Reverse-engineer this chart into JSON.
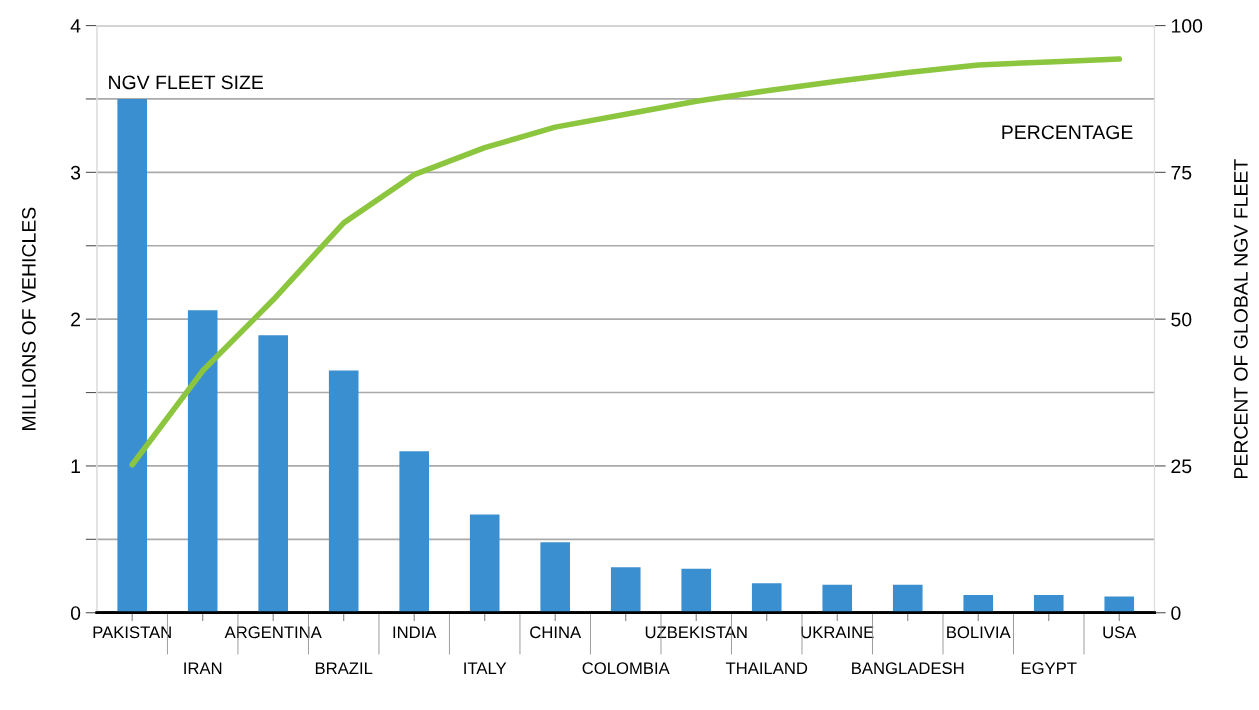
{
  "chart_data": {
    "type": "bar",
    "categories": [
      "PAKISTAN",
      "IRAN",
      "ARGENTINA",
      "BRAZIL",
      "INDIA",
      "ITALY",
      "CHINA",
      "COLOMBIA",
      "UZBEKISTAN",
      "THAILAND",
      "UKRAINE",
      "BANGLADESH",
      "BOLIVIA",
      "EGYPT",
      "USA"
    ],
    "series": [
      {
        "color": "#3a8fd0",
        "values": [
          3.5,
          2.06,
          1.89,
          1.65,
          1.1,
          0.67,
          0.48,
          0.31,
          0.3,
          0.2,
          0.19,
          0.19,
          0.12,
          0.12,
          0.11
        ]
      },
      {
        "type": "line",
        "axis": "y2",
        "color": "#8cc63f",
        "values": [
          25.2,
          41.2,
          53.3,
          66.4,
          74.6,
          79.2,
          82.7,
          84.9,
          87.1,
          88.9,
          90.5,
          92.0,
          93.3,
          93.8,
          94.3
        ]
      }
    ],
    "ylabel": "MILLIONS OF VEHICLES",
    "y2label": "PERCENT OF GLOBAL NGV FLEET",
    "ylim": [
      0,
      4
    ],
    "yticks": [
      0,
      {
        "value": 0.5,
        "label": null
      },
      1,
      {
        "value": 1.5,
        "label": null
      },
      2,
      {
        "value": 2.5,
        "label": null
      },
      3,
      {
        "value": 3.5,
        "label": null
      },
      4
    ],
    "y2lim": [
      0,
      100
    ],
    "y2ticks": [
      0,
      25,
      50,
      75,
      100
    ],
    "grid": "y",
    "legend": false,
    "marker": "none",
    "line_style": "solid",
    "annotations": [
      "NGV FLEET SIZE",
      "PERCENTAGE"
    ]
  }
}
